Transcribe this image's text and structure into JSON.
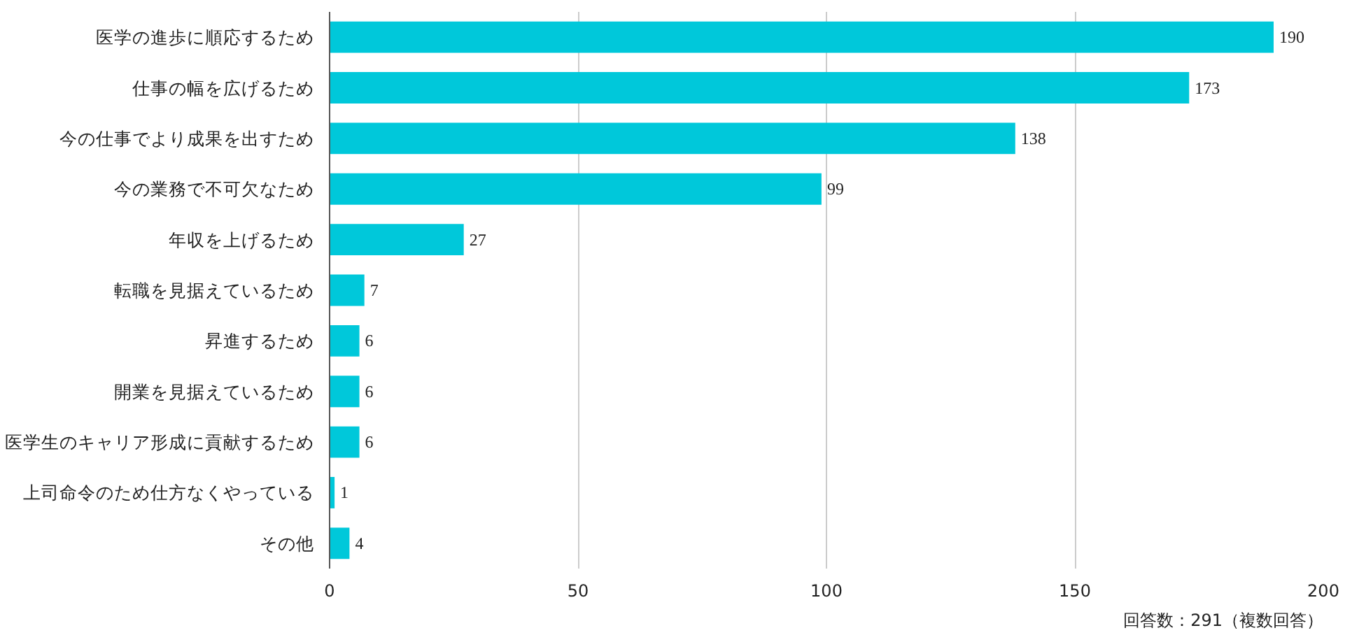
{
  "chart_data": {
    "type": "bar",
    "orientation": "horizontal",
    "categories": [
      "医学の進歩に順応するため",
      "仕事の幅を広げるため",
      "今の仕事でより成果を出すため",
      "今の業務で不可欠なため",
      "年収を上げるため",
      "転職を見据えているため",
      "昇進するため",
      "開業を見据えているため",
      "医学生のキャリア形成に貢献するため",
      "上司命令のため仕方なくやっている",
      "その他"
    ],
    "values": [
      190,
      173,
      138,
      99,
      27,
      7,
      6,
      6,
      6,
      1,
      4
    ],
    "color": "#00c8da",
    "xlim": [
      0,
      200
    ],
    "xticks": [
      0,
      50,
      100,
      150,
      200
    ],
    "grid": "x",
    "data_labels": true,
    "annotations": [
      "回答数：291（複数回答）"
    ]
  }
}
